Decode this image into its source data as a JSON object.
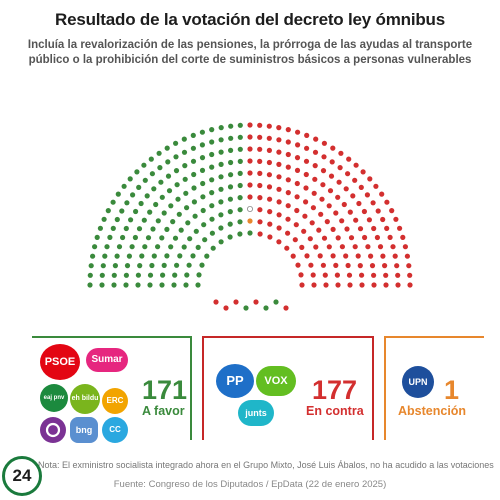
{
  "title": "Resultado de la votación del decreto ley ómnibus",
  "subtitle": "Incluía la revalorización de las pensiones, la prórroga de las ayudas al transporte público o la prohibición del corte de suministros básicos a personas vulnerables",
  "hemicycle": {
    "colors": {
      "favor": "#3a8a3c",
      "contra": "#d32f2f",
      "abstencion": "#e7872d",
      "empty": "#ffffff",
      "empty_stroke": "#888888"
    },
    "seats_favor": 171,
    "seats_contra": 177,
    "seats_abstencion": 1,
    "seats_absent": 1
  },
  "results": {
    "favor": {
      "count": "171",
      "label": "A favor",
      "color": "#3a8a3c"
    },
    "contra": {
      "count": "177",
      "label": "En contra",
      "color": "#d32f2f"
    },
    "abstencion": {
      "count": "1",
      "label": "Abstención",
      "color": "#e7872d"
    }
  },
  "parties_favor": [
    {
      "name": "PSOE",
      "color": "#e30613",
      "icon": "psoe-logo"
    },
    {
      "name": "Sumar",
      "color": "#e6267f",
      "icon": "sumar-logo"
    },
    {
      "name": "eaj pnv",
      "color": "#1c8a3e",
      "icon": "pnv-logo"
    },
    {
      "name": "eh bildu",
      "color": "#7ab51d",
      "icon": "bildu-logo"
    },
    {
      "name": "ERC",
      "color": "#f2a400",
      "icon": "erc-logo"
    },
    {
      "name": "",
      "color": "#7b3294",
      "icon": "podemos-logo"
    },
    {
      "name": "bng",
      "color": "#5a8fd0",
      "icon": "bng-logo"
    },
    {
      "name": "CC",
      "color": "#2aa8e0",
      "icon": "cc-logo"
    }
  ],
  "parties_contra": [
    {
      "name": "PP",
      "color": "#1e6fc8",
      "icon": "pp-logo"
    },
    {
      "name": "VOX",
      "color": "#63be21",
      "icon": "vox-logo"
    },
    {
      "name": "junts",
      "color": "#1fb6c9",
      "icon": "junts-logo"
    }
  ],
  "parties_abstencion": [
    {
      "name": "UPN",
      "color": "#1e4f9c",
      "icon": "upn-logo"
    }
  ],
  "note": "Nota: El exministro socialista integrado ahora en el Grupo Mixto, José Luis Ábalos, no ha acudido a las votaciones",
  "source": "Fuente: Congreso de los Diputados / EpData (22 de enero 2025)",
  "brand": "24"
}
